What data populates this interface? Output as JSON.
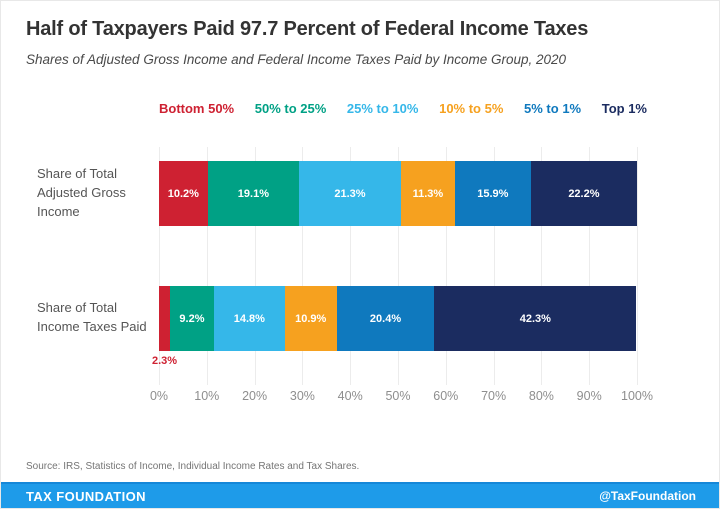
{
  "chart_data": {
    "type": "bar",
    "variant": "horizontal-stacked",
    "title": "Half of Taxpayers Paid 97.7 Percent of Federal Income Taxes",
    "subtitle": "Shares of Adjusted Gross Income and Federal Income Taxes Paid by Income Group, 2020",
    "categories": [
      "Share of Total Adjusted Gross Income",
      "Share of Total Income Taxes Paid"
    ],
    "series": [
      {
        "name": "Bottom 50%",
        "color": "#ce2132",
        "values": [
          10.2,
          2.3
        ]
      },
      {
        "name": "50% to 25%",
        "color": "#00a185",
        "values": [
          19.1,
          9.2
        ]
      },
      {
        "name": "25% to 10%",
        "color": "#35b7e9",
        "values": [
          21.3,
          14.8
        ]
      },
      {
        "name": "10% to 5%",
        "color": "#f6a11f",
        "values": [
          11.3,
          10.9
        ]
      },
      {
        "name": "5% to 1%",
        "color": "#0f79be",
        "values": [
          15.9,
          20.4
        ]
      },
      {
        "name": "Top 1%",
        "color": "#1b2c60",
        "values": [
          22.2,
          42.3
        ]
      }
    ],
    "x_ticks": [
      "0%",
      "10%",
      "20%",
      "30%",
      "40%",
      "50%",
      "60%",
      "70%",
      "80%",
      "90%",
      "100%"
    ],
    "xlim": [
      0,
      100
    ],
    "grid": true,
    "legend_position": "top",
    "value_label_color": "#ffffff",
    "label_outside_threshold": 4
  },
  "footer": {
    "source": "Source: IRS, Statistics of Income, Individual Income Rates and Tax Shares.",
    "brand": "TAX FOUNDATION",
    "handle": "@TaxFoundation",
    "bar_color": "#1e9be9"
  }
}
